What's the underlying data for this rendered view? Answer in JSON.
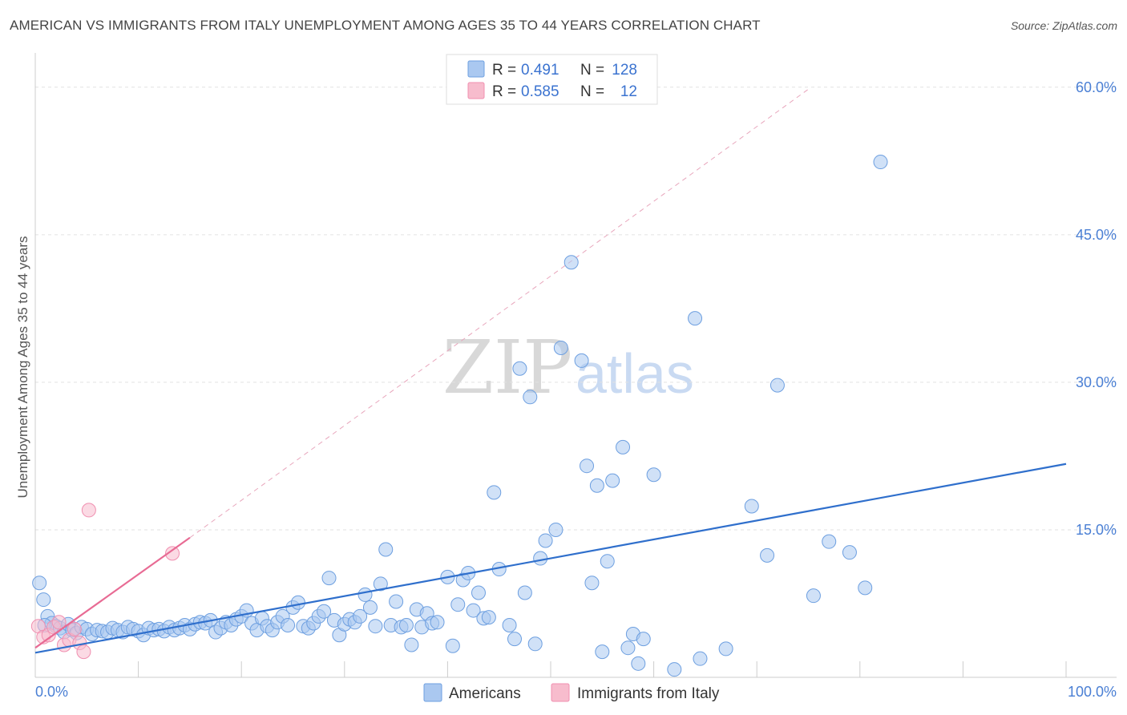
{
  "title": "AMERICAN VS IMMIGRANTS FROM ITALY UNEMPLOYMENT AMONG AGES 35 TO 44 YEARS CORRELATION CHART",
  "source": "Source: ZipAtlas.com",
  "watermark": {
    "zip": "ZIP",
    "atlas": "atlas"
  },
  "legend": {
    "r_label": "R =",
    "n_label": "N =",
    "rows": [
      {
        "r": "0.491",
        "n": "128",
        "color": "#a8c6f0"
      },
      {
        "r": "0.585",
        "n": "12",
        "color": "#f7b8cc"
      }
    ]
  },
  "bottom_legend": {
    "americans": "Americans",
    "italy": "Immigrants from Italy"
  },
  "chart_data": {
    "type": "scatter",
    "title": "AMERICAN VS IMMIGRANTS FROM ITALY UNEMPLOYMENT AMONG AGES 35 TO 44 YEARS CORRELATION CHART",
    "xlabel": "",
    "ylabel": "Unemployment Among Ages 35 to 44 years",
    "xlim": [
      0,
      100
    ],
    "ylim": [
      0,
      63
    ],
    "x_tick_labels": [
      "0.0%",
      "100.0%"
    ],
    "y_ticks": [
      15,
      30,
      45,
      60
    ],
    "y_tick_labels": [
      "15.0%",
      "30.0%",
      "45.0%",
      "60.0%"
    ],
    "grid": true,
    "series": [
      {
        "name": "Americans",
        "color": "#6d9fe0",
        "fill": "#aac8f0",
        "trend": {
          "x": [
            0,
            100
          ],
          "y": [
            2.5,
            21.7
          ],
          "color": "#2f6fcc"
        },
        "points": [
          [
            0.4,
            9.6
          ],
          [
            0.8,
            7.9
          ],
          [
            1.2,
            6.2
          ],
          [
            1.6,
            5.5
          ],
          [
            2.0,
            5.2
          ],
          [
            2.4,
            5.0
          ],
          [
            2.8,
            4.6
          ],
          [
            3.2,
            5.4
          ],
          [
            3.6,
            4.8
          ],
          [
            4.0,
            4.5
          ],
          [
            4.5,
            5.1
          ],
          [
            5.0,
            4.9
          ],
          [
            5.5,
            4.4
          ],
          [
            6.0,
            4.8
          ],
          [
            6.5,
            4.7
          ],
          [
            7.0,
            4.6
          ],
          [
            7.5,
            5.0
          ],
          [
            8.0,
            4.8
          ],
          [
            8.5,
            4.6
          ],
          [
            9.0,
            5.1
          ],
          [
            9.5,
            4.9
          ],
          [
            10.0,
            4.7
          ],
          [
            10.5,
            4.3
          ],
          [
            11.0,
            5.0
          ],
          [
            11.5,
            4.8
          ],
          [
            12.0,
            4.9
          ],
          [
            12.5,
            4.7
          ],
          [
            13.0,
            5.1
          ],
          [
            13.5,
            4.8
          ],
          [
            14.0,
            5.0
          ],
          [
            14.5,
            5.3
          ],
          [
            15.0,
            4.9
          ],
          [
            15.5,
            5.4
          ],
          [
            16.0,
            5.6
          ],
          [
            16.5,
            5.5
          ],
          [
            17.0,
            5.8
          ],
          [
            17.5,
            4.6
          ],
          [
            18.0,
            5.0
          ],
          [
            18.5,
            5.6
          ],
          [
            19.0,
            5.3
          ],
          [
            19.5,
            5.9
          ],
          [
            20.0,
            6.2
          ],
          [
            20.5,
            6.8
          ],
          [
            21.0,
            5.5
          ],
          [
            21.5,
            4.8
          ],
          [
            22.0,
            6.0
          ],
          [
            22.5,
            5.2
          ],
          [
            23.0,
            4.8
          ],
          [
            23.5,
            5.6
          ],
          [
            24.0,
            6.2
          ],
          [
            24.5,
            5.3
          ],
          [
            25.0,
            7.1
          ],
          [
            25.5,
            7.6
          ],
          [
            26.0,
            5.2
          ],
          [
            26.5,
            5.0
          ],
          [
            27.0,
            5.5
          ],
          [
            27.5,
            6.2
          ],
          [
            28.0,
            6.7
          ],
          [
            28.5,
            10.1
          ],
          [
            29.0,
            5.8
          ],
          [
            29.5,
            4.3
          ],
          [
            30.0,
            5.4
          ],
          [
            30.5,
            5.9
          ],
          [
            31.0,
            5.6
          ],
          [
            31.5,
            6.2
          ],
          [
            32.0,
            8.4
          ],
          [
            32.5,
            7.1
          ],
          [
            33.0,
            5.2
          ],
          [
            33.5,
            9.5
          ],
          [
            34.0,
            13.0
          ],
          [
            34.5,
            5.3
          ],
          [
            35.0,
            7.7
          ],
          [
            35.5,
            5.1
          ],
          [
            36.0,
            5.3
          ],
          [
            36.5,
            3.3
          ],
          [
            37.0,
            6.9
          ],
          [
            37.5,
            5.1
          ],
          [
            38.0,
            6.5
          ],
          [
            38.5,
            5.5
          ],
          [
            39.0,
            5.6
          ],
          [
            40.0,
            10.2
          ],
          [
            40.5,
            3.2
          ],
          [
            41.0,
            7.4
          ],
          [
            41.5,
            9.9
          ],
          [
            42.0,
            10.6
          ],
          [
            42.5,
            6.8
          ],
          [
            43.0,
            8.6
          ],
          [
            43.5,
            6.0
          ],
          [
            44.0,
            6.1
          ],
          [
            44.5,
            18.8
          ],
          [
            45.0,
            11.0
          ],
          [
            46.0,
            5.3
          ],
          [
            46.5,
            3.9
          ],
          [
            47.0,
            31.4
          ],
          [
            47.5,
            8.6
          ],
          [
            48.0,
            28.5
          ],
          [
            48.5,
            3.4
          ],
          [
            49.0,
            12.1
          ],
          [
            49.5,
            13.9
          ],
          [
            50.5,
            15.0
          ],
          [
            51.0,
            33.5
          ],
          [
            52.0,
            42.2
          ],
          [
            53.0,
            32.2
          ],
          [
            53.5,
            21.5
          ],
          [
            54.0,
            9.6
          ],
          [
            54.5,
            19.5
          ],
          [
            55.0,
            2.6
          ],
          [
            55.5,
            11.8
          ],
          [
            56.0,
            20.0
          ],
          [
            57.0,
            23.4
          ],
          [
            57.5,
            3.0
          ],
          [
            58.0,
            4.4
          ],
          [
            58.5,
            1.4
          ],
          [
            59.0,
            3.9
          ],
          [
            60.0,
            20.6
          ],
          [
            62.0,
            0.8
          ],
          [
            64.0,
            36.5
          ],
          [
            64.5,
            1.9
          ],
          [
            67.0,
            2.9
          ],
          [
            69.5,
            17.4
          ],
          [
            71.0,
            12.4
          ],
          [
            72.0,
            29.7
          ],
          [
            75.5,
            8.3
          ],
          [
            77.0,
            13.8
          ],
          [
            79.0,
            12.7
          ],
          [
            80.5,
            9.1
          ],
          [
            82.0,
            52.4
          ],
          [
            0.9,
            5.3
          ]
        ]
      },
      {
        "name": "Immigrants from Italy",
        "color": "#f08fb0",
        "fill": "#f7bccd",
        "trend": {
          "x": [
            0,
            15
          ],
          "y": [
            3.0,
            14.2
          ],
          "color": "#e86b94"
        },
        "trend_dashed": {
          "x": [
            15,
            75
          ],
          "y": [
            14.2,
            59.8
          ],
          "color": "#e8a6bc"
        },
        "points": [
          [
            0.3,
            5.2
          ],
          [
            0.8,
            4.1
          ],
          [
            1.3,
            4.3
          ],
          [
            1.8,
            5.1
          ],
          [
            2.3,
            5.6
          ],
          [
            2.8,
            3.3
          ],
          [
            3.3,
            3.8
          ],
          [
            3.8,
            4.9
          ],
          [
            4.3,
            3.5
          ],
          [
            4.7,
            2.6
          ],
          [
            5.2,
            17.0
          ],
          [
            13.3,
            12.6
          ]
        ]
      }
    ]
  }
}
